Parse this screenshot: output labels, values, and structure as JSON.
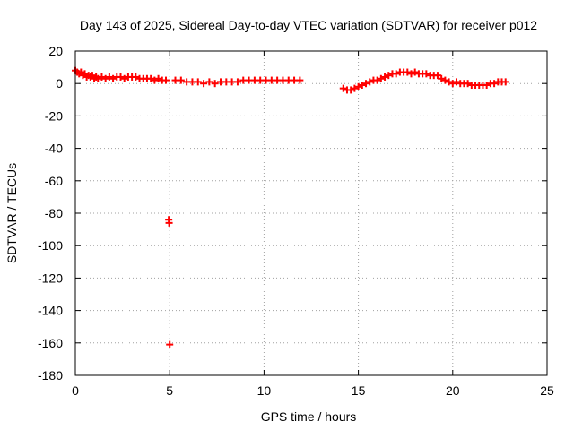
{
  "chart_data": {
    "type": "scatter",
    "title": "Day 143 of 2025, Sidereal Day-to-day VTEC variation (SDTVAR) for receiver p012",
    "xlabel": "GPS time / hours",
    "ylabel": "SDTVAR / TECUs",
    "xlim": [
      0,
      25
    ],
    "ylim": [
      -180,
      20
    ],
    "xticks": [
      0,
      5,
      10,
      15,
      20,
      25
    ],
    "xtick_labels": [
      "0",
      "5",
      "10",
      "15",
      "20",
      "25"
    ],
    "yticks": [
      20,
      0,
      -20,
      -40,
      -60,
      -80,
      -100,
      -120,
      -140,
      -160,
      -180
    ],
    "ytick_labels": [
      "20",
      "0",
      "-20",
      "-40",
      "-60",
      "-80",
      "-100",
      "-120",
      "-140",
      "-160",
      "-180"
    ],
    "grid": true,
    "marker": "plus",
    "color": "#ff0000",
    "series": [
      {
        "name": "SDTVAR",
        "points": [
          [
            0.0,
            8
          ],
          [
            0.1,
            7
          ],
          [
            0.2,
            6
          ],
          [
            0.3,
            7
          ],
          [
            0.4,
            5
          ],
          [
            0.5,
            6
          ],
          [
            0.6,
            4
          ],
          [
            0.7,
            5
          ],
          [
            0.8,
            4
          ],
          [
            0.9,
            5
          ],
          [
            1.0,
            3
          ],
          [
            1.1,
            4
          ],
          [
            1.2,
            3
          ],
          [
            1.4,
            4
          ],
          [
            1.6,
            3
          ],
          [
            1.8,
            4
          ],
          [
            2.0,
            3
          ],
          [
            2.2,
            4
          ],
          [
            2.4,
            4
          ],
          [
            2.6,
            3
          ],
          [
            2.8,
            4
          ],
          [
            3.0,
            4
          ],
          [
            3.2,
            4
          ],
          [
            3.4,
            3
          ],
          [
            3.6,
            3
          ],
          [
            3.8,
            3
          ],
          [
            4.0,
            3
          ],
          [
            4.2,
            2
          ],
          [
            4.4,
            3
          ],
          [
            4.6,
            2
          ],
          [
            4.8,
            2
          ],
          [
            4.95,
            -84
          ],
          [
            4.97,
            -86
          ],
          [
            5.0,
            -161
          ],
          [
            5.3,
            2
          ],
          [
            5.6,
            2
          ],
          [
            5.9,
            1
          ],
          [
            6.2,
            1
          ],
          [
            6.5,
            1
          ],
          [
            6.8,
            0
          ],
          [
            7.1,
            1
          ],
          [
            7.4,
            0
          ],
          [
            7.7,
            1
          ],
          [
            8.0,
            1
          ],
          [
            8.3,
            1
          ],
          [
            8.6,
            1
          ],
          [
            8.9,
            2
          ],
          [
            9.2,
            2
          ],
          [
            9.5,
            2
          ],
          [
            9.8,
            2
          ],
          [
            10.1,
            2
          ],
          [
            10.4,
            2
          ],
          [
            10.7,
            2
          ],
          [
            11.0,
            2
          ],
          [
            11.3,
            2
          ],
          [
            11.6,
            2
          ],
          [
            11.9,
            2
          ],
          [
            14.2,
            -3
          ],
          [
            14.4,
            -4
          ],
          [
            14.6,
            -4
          ],
          [
            14.8,
            -3
          ],
          [
            15.0,
            -2
          ],
          [
            15.2,
            -1
          ],
          [
            15.4,
            0
          ],
          [
            15.6,
            1
          ],
          [
            15.8,
            2
          ],
          [
            16.0,
            2
          ],
          [
            16.2,
            3
          ],
          [
            16.4,
            4
          ],
          [
            16.6,
            5
          ],
          [
            16.8,
            6
          ],
          [
            17.0,
            6
          ],
          [
            17.2,
            7
          ],
          [
            17.4,
            7
          ],
          [
            17.6,
            7
          ],
          [
            17.8,
            6
          ],
          [
            18.0,
            7
          ],
          [
            18.2,
            6
          ],
          [
            18.4,
            6
          ],
          [
            18.6,
            6
          ],
          [
            18.8,
            5
          ],
          [
            19.0,
            5
          ],
          [
            19.2,
            5
          ],
          [
            19.4,
            3
          ],
          [
            19.6,
            2
          ],
          [
            19.8,
            1
          ],
          [
            20.0,
            0
          ],
          [
            20.2,
            1
          ],
          [
            20.4,
            0
          ],
          [
            20.6,
            0
          ],
          [
            20.8,
            0
          ],
          [
            21.0,
            -1
          ],
          [
            21.2,
            -1
          ],
          [
            21.4,
            -1
          ],
          [
            21.6,
            -1
          ],
          [
            21.8,
            -1
          ],
          [
            22.0,
            0
          ],
          [
            22.2,
            0
          ],
          [
            22.4,
            1
          ],
          [
            22.6,
            1
          ],
          [
            22.8,
            1
          ]
        ]
      }
    ]
  }
}
